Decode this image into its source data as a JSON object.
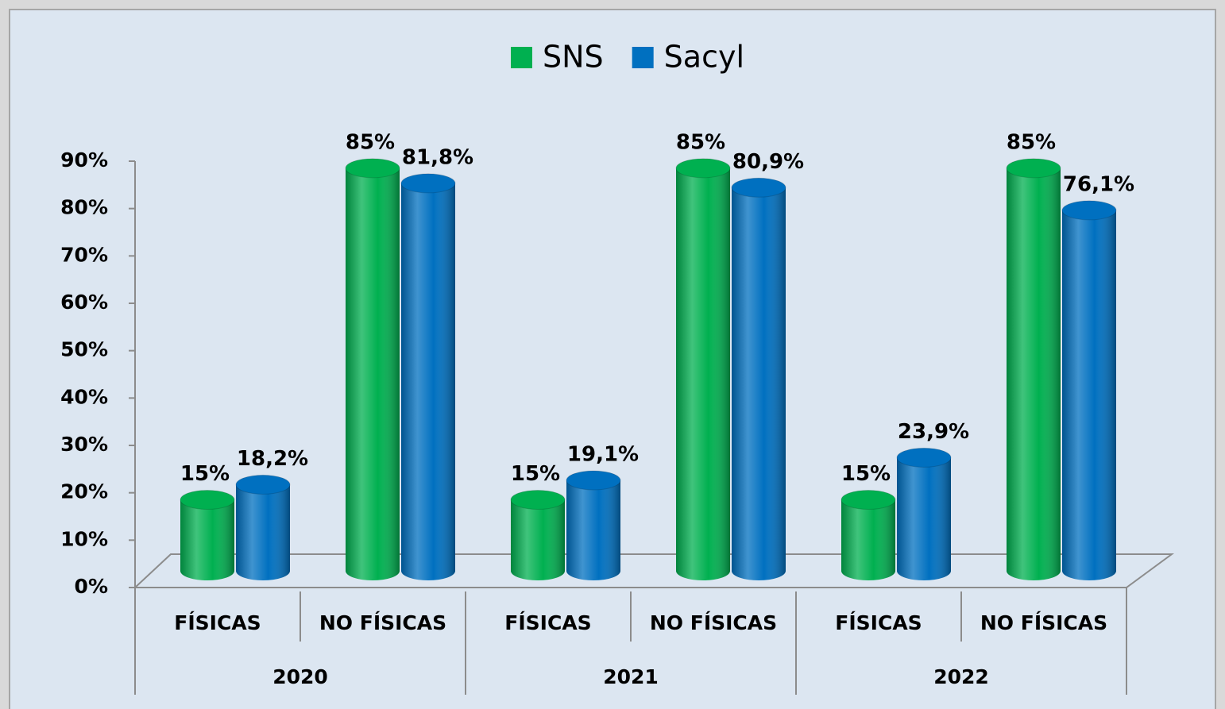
{
  "chart_data": {
    "type": "bar3d",
    "categories": [
      "FÍSICAS",
      "NO FÍSICAS",
      "FÍSICAS",
      "NO FÍSICAS",
      "FÍSICAS",
      "NO FÍSICAS"
    ],
    "groups": [
      "2020",
      "2021",
      "2022"
    ],
    "series": [
      {
        "name": "SNS",
        "color": "#00b050",
        "values": [
          15,
          85,
          15,
          85,
          15,
          85
        ],
        "value_labels": [
          "15%",
          "85%",
          "15%",
          "85%",
          "15%",
          "85%"
        ]
      },
      {
        "name": "Sacyl",
        "color": "#0070c0",
        "values": [
          18.2,
          81.8,
          19.1,
          80.9,
          23.9,
          76.1
        ],
        "value_labels": [
          "18,2%",
          "81,8%",
          "19,1%",
          "80,9%",
          "23,9%",
          "76,1%"
        ]
      }
    ],
    "ylim": [
      0,
      90
    ],
    "yticks": [
      {
        "value": 0,
        "label": "0%"
      },
      {
        "value": 10,
        "label": "10%"
      },
      {
        "value": 20,
        "label": "20%"
      },
      {
        "value": 30,
        "label": "30%"
      },
      {
        "value": 40,
        "label": "40%"
      },
      {
        "value": 50,
        "label": "50%"
      },
      {
        "value": 60,
        "label": "60%"
      },
      {
        "value": 70,
        "label": "70%"
      },
      {
        "value": 80,
        "label": "80%"
      },
      {
        "value": 90,
        "label": "90%"
      }
    ],
    "legend": "top"
  }
}
